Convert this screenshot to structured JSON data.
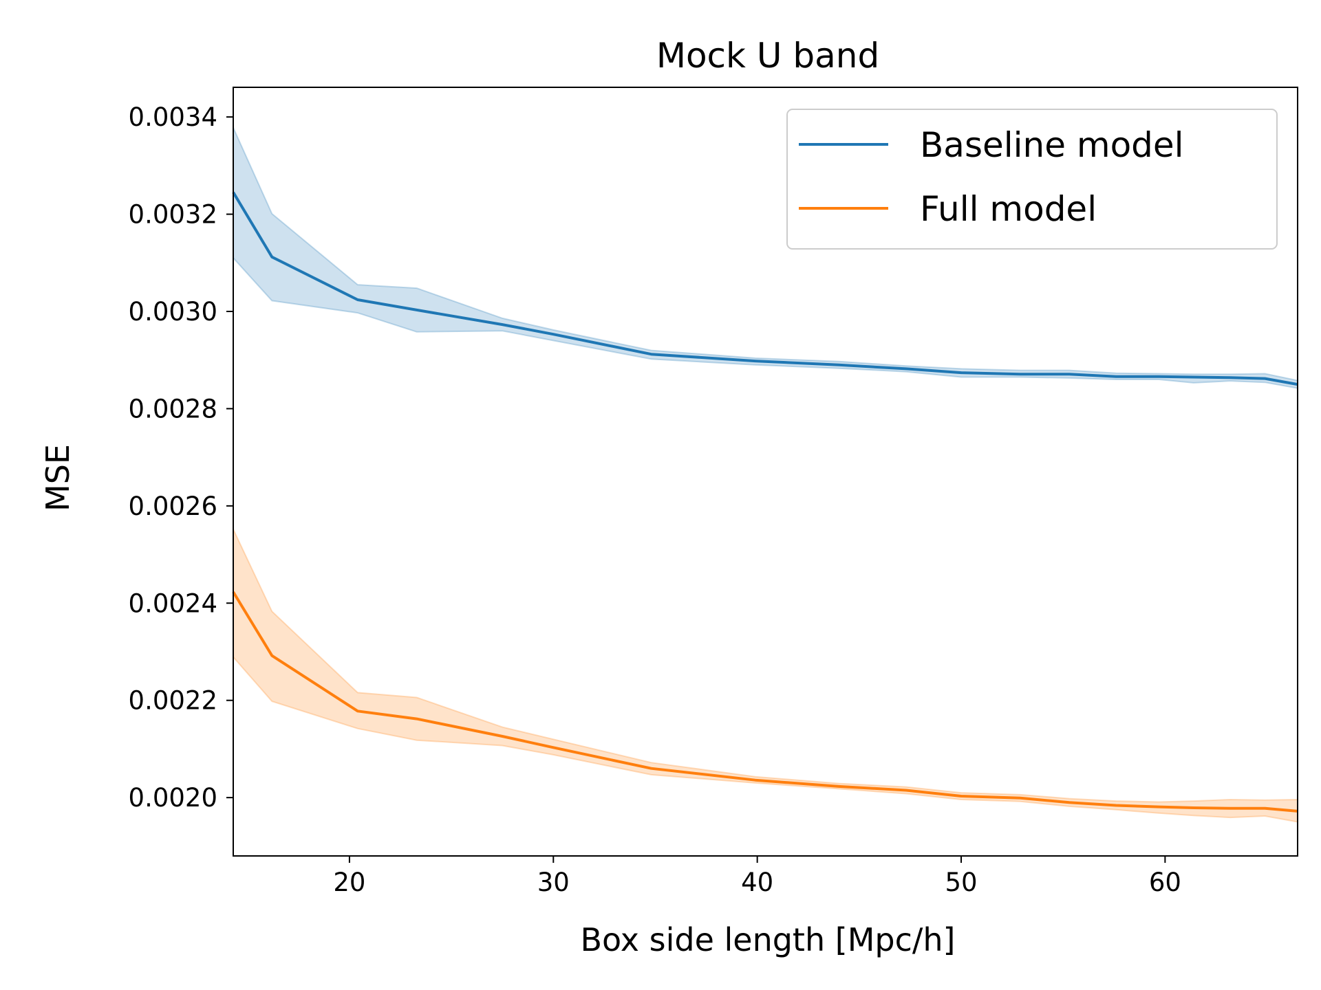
{
  "chart_data": {
    "type": "line",
    "title": "Mock U band",
    "xlabel": "Box side length [Mpc/h]",
    "ylabel": "MSE",
    "xlim": [
      14.3,
      66.5
    ],
    "ylim": [
      0.00188,
      0.003461
    ],
    "xticks": [
      20,
      30,
      40,
      50,
      60
    ],
    "xtick_labels": [
      "20",
      "30",
      "40",
      "50",
      "60"
    ],
    "yticks": [
      0.002,
      0.0022,
      0.0024,
      0.0026,
      0.0028,
      0.003,
      0.0032,
      0.0034
    ],
    "ytick_labels": [
      "0.0020",
      "0.0022",
      "0.0024",
      "0.0026",
      "0.0028",
      "0.0030",
      "0.0032",
      "0.0034"
    ],
    "grid": false,
    "legend_position": "top-right",
    "x": [
      14.3,
      16.2,
      20.4,
      23.3,
      27.5,
      30.0,
      34.8,
      39.9,
      44.0,
      47.3,
      50.0,
      52.9,
      55.3,
      57.6,
      59.7,
      61.4,
      63.2,
      64.9,
      66.5
    ],
    "series": [
      {
        "name": "Baseline model",
        "color": "#1f77b4",
        "values": [
          0.003245,
          0.003112,
          0.003024,
          0.003003,
          0.002973,
          0.002953,
          0.002912,
          0.002898,
          0.00289,
          0.002882,
          0.002874,
          0.002871,
          0.002871,
          0.002866,
          0.002866,
          0.002865,
          0.002864,
          0.002862,
          0.00285
        ],
        "upper": [
          0.003378,
          0.003201,
          0.003055,
          0.003048,
          0.002986,
          0.002962,
          0.00292,
          0.002904,
          0.002897,
          0.002888,
          0.002882,
          0.002879,
          0.002879,
          0.002873,
          0.002872,
          0.002871,
          0.002871,
          0.002872,
          0.002858
        ],
        "lower": [
          0.00311,
          0.003022,
          0.002997,
          0.002958,
          0.00296,
          0.00294,
          0.002902,
          0.00289,
          0.002883,
          0.002876,
          0.002865,
          0.002865,
          0.002863,
          0.00286,
          0.00286,
          0.002853,
          0.002857,
          0.002854,
          0.002842
        ]
      },
      {
        "name": "Full model",
        "color": "#ff7f0e",
        "values": [
          0.002423,
          0.002292,
          0.002178,
          0.002162,
          0.002126,
          0.002103,
          0.00206,
          0.002036,
          0.002023,
          0.002015,
          0.002003,
          0.001999,
          0.00199,
          0.001984,
          0.001981,
          0.001979,
          0.001978,
          0.001978,
          0.001972
        ],
        "upper": [
          0.002552,
          0.002383,
          0.002216,
          0.002206,
          0.002145,
          0.00212,
          0.002072,
          0.002043,
          0.002029,
          0.002022,
          0.00201,
          0.002006,
          0.001998,
          0.001993,
          0.001991,
          0.001993,
          0.001996,
          0.001995,
          0.001996
        ],
        "lower": [
          0.002289,
          0.002198,
          0.002142,
          0.002118,
          0.002107,
          0.002088,
          0.002047,
          0.00203,
          0.002018,
          0.002008,
          0.001996,
          0.001992,
          0.001982,
          0.001975,
          0.001968,
          0.001963,
          0.001959,
          0.001962,
          0.00195
        ]
      }
    ]
  }
}
